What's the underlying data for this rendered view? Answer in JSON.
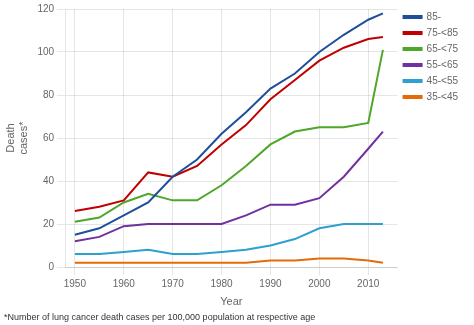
{
  "chart_data": {
    "type": "line",
    "ylabel": [
      "Death",
      "cases*"
    ],
    "xlabel": "Year",
    "annotations": [
      "*Number of lung cancer death cases per 100,000 population at respective age"
    ],
    "x": [
      1950,
      1955,
      1960,
      1965,
      1970,
      1975,
      1980,
      1985,
      1990,
      1995,
      2000,
      2005,
      2010,
      2013
    ],
    "series": [
      {
        "name": "85-",
        "color": "#1f4e9a",
        "values": [
          15,
          18,
          24,
          30,
          42,
          50,
          62,
          72,
          83,
          90,
          100,
          108,
          115,
          118
        ]
      },
      {
        "name": "75-<85",
        "color": "#c00000",
        "values": [
          26,
          28,
          31,
          44,
          42,
          47,
          57,
          66,
          78,
          87,
          96,
          102,
          106,
          107
        ]
      },
      {
        "name": "65-<75",
        "color": "#4ea72a",
        "values": [
          21,
          23,
          30,
          34,
          31,
          31,
          38,
          47,
          57,
          63,
          65,
          65,
          67,
          101
        ]
      },
      {
        "name": "55-<65",
        "color": "#7030a0",
        "values": [
          12,
          14,
          19,
          20,
          20,
          20,
          20,
          24,
          29,
          29,
          32,
          42,
          55,
          63
        ]
      },
      {
        "name": "45-<55",
        "color": "#2e9fce",
        "values": [
          6,
          6,
          7,
          8,
          6,
          6,
          7,
          8,
          10,
          13,
          18,
          20,
          20,
          20
        ]
      },
      {
        "name": "35-<45",
        "color": "#e36c09",
        "values": [
          2,
          2,
          2,
          2,
          2,
          2,
          2,
          2,
          3,
          3,
          4,
          4,
          3,
          2
        ]
      }
    ],
    "xlim": [
      1948,
      2016
    ],
    "xticks": [
      1950,
      1960,
      1970,
      1980,
      1990,
      2000,
      2010
    ],
    "ylim": [
      0,
      120
    ],
    "yticks": [
      0,
      20,
      40,
      60,
      80,
      100,
      120
    ],
    "grid": true,
    "legend": "right"
  }
}
